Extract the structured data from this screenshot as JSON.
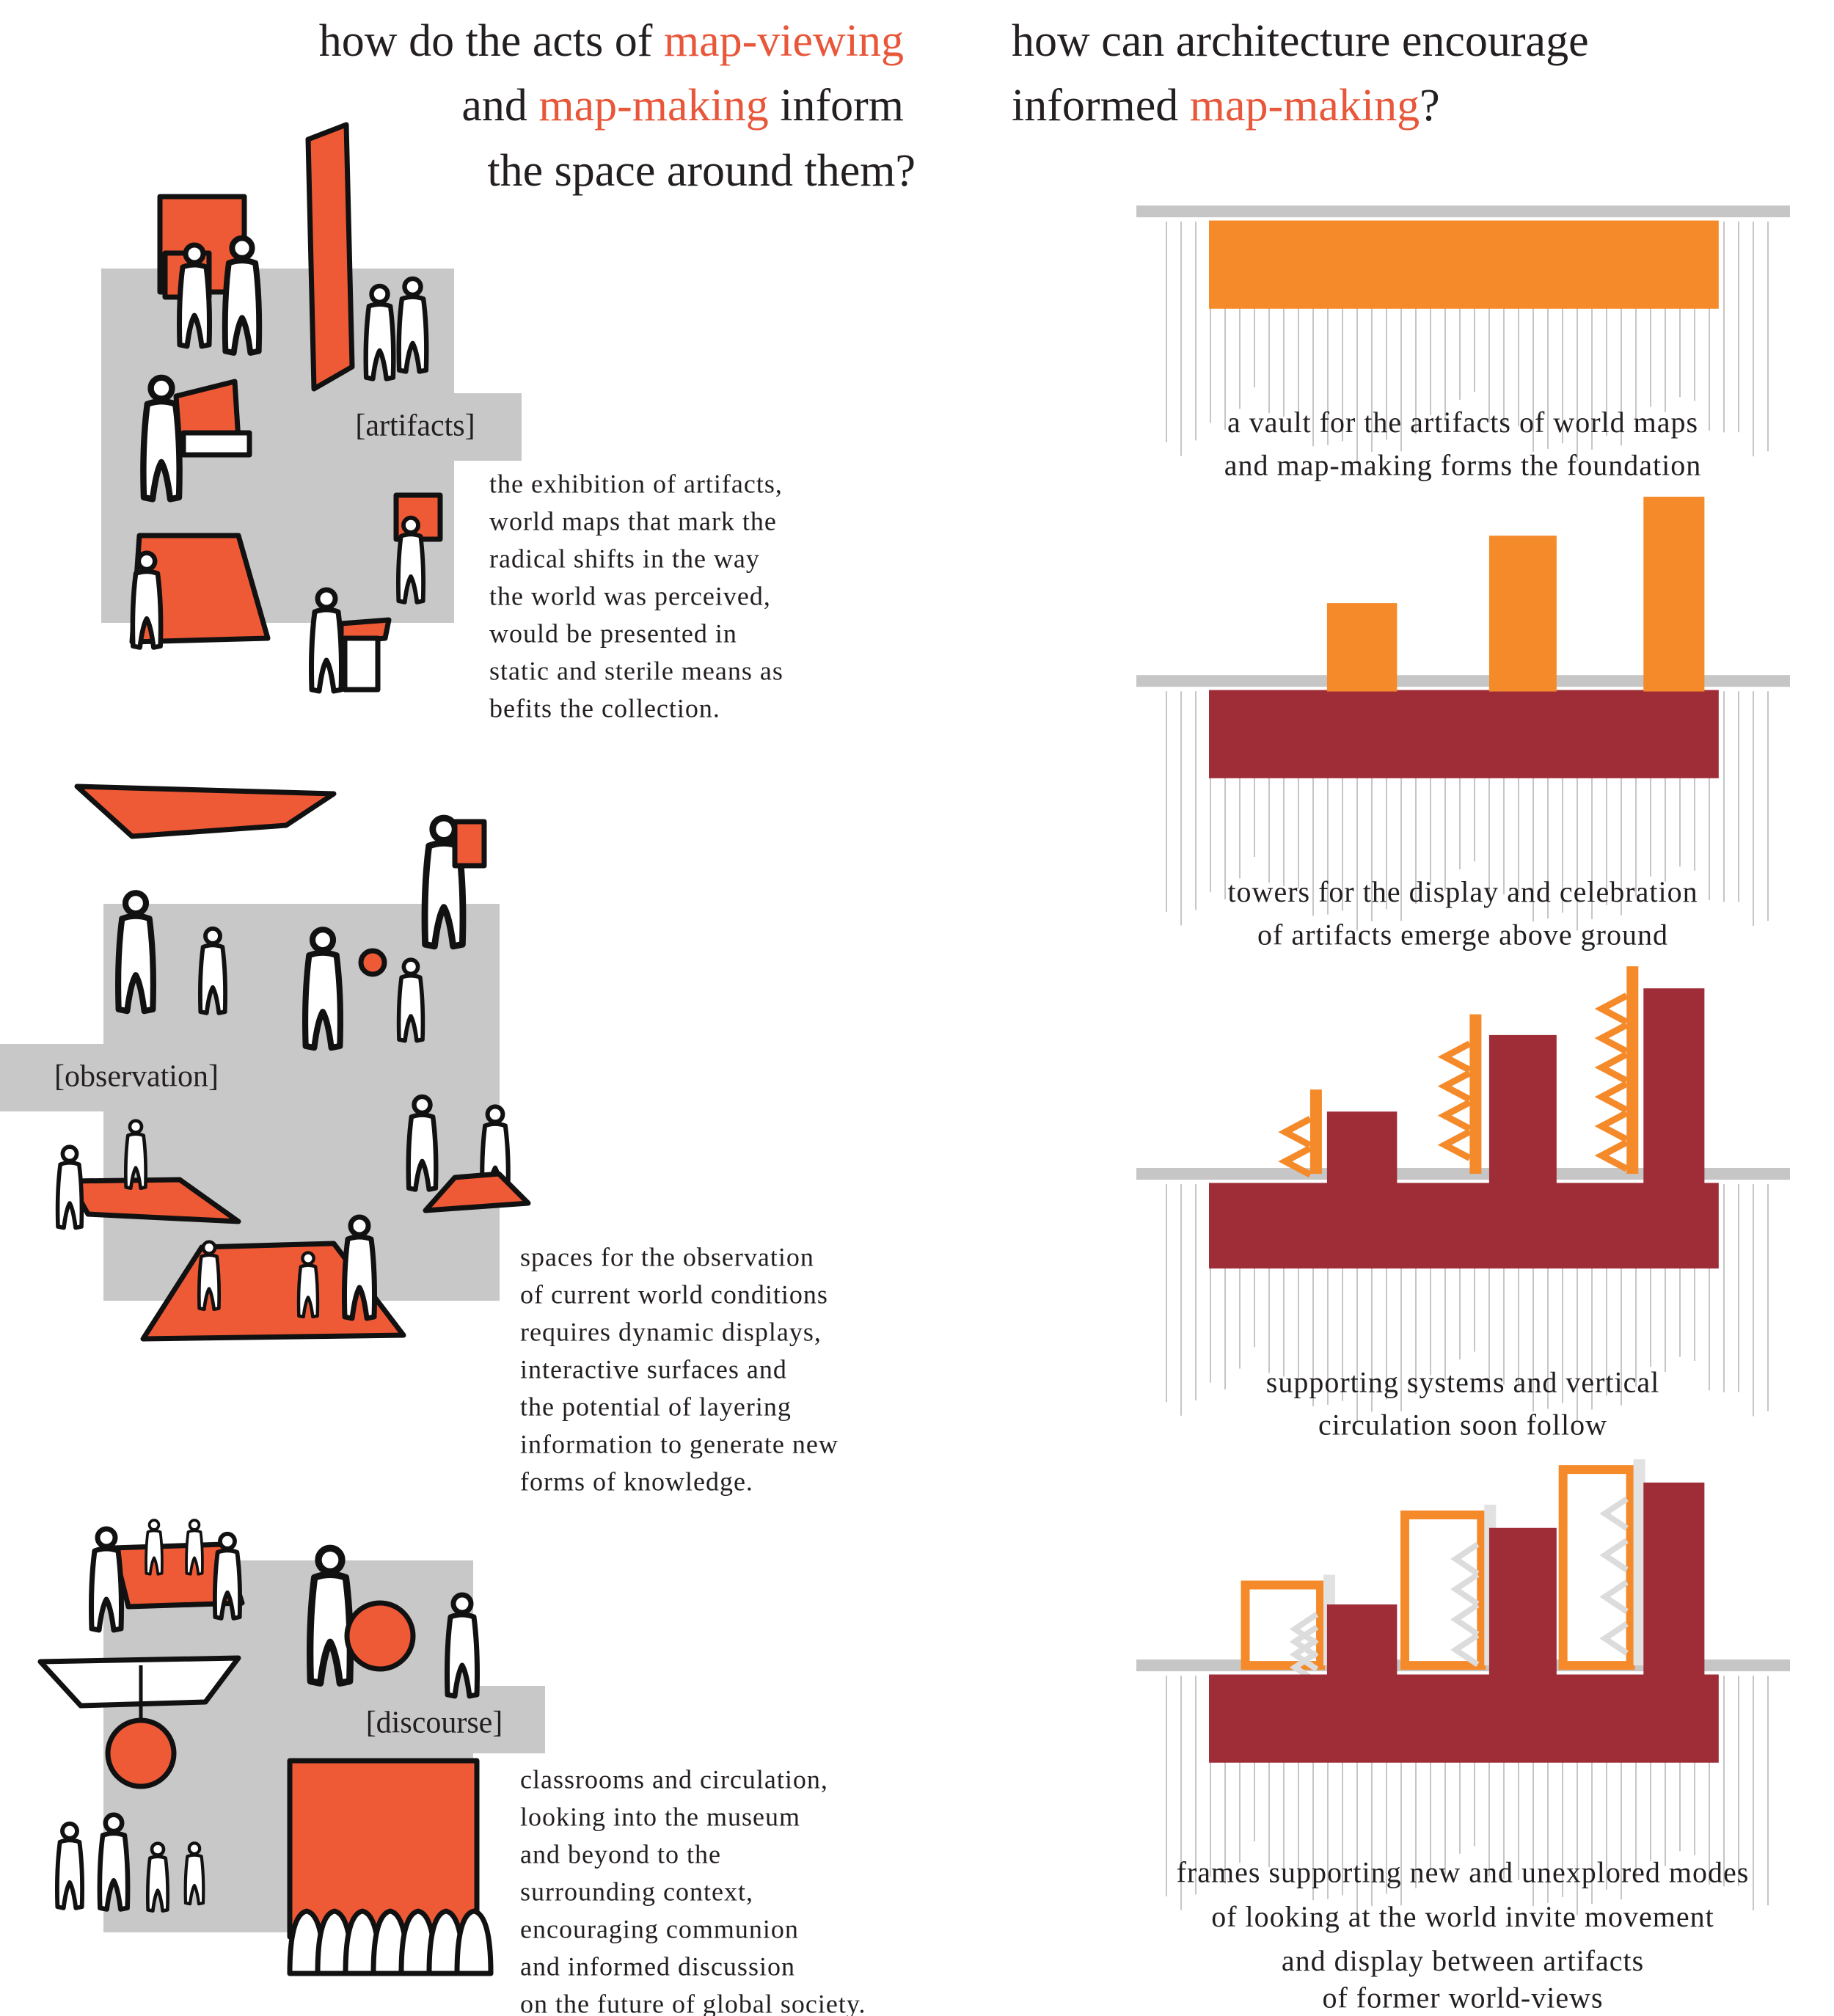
{
  "left_heading": [
    "how do the acts of",
    "map-viewing",
    "and",
    "map-making",
    "inform",
    "the space around them?"
  ],
  "right_heading": [
    "how can architecture encourage",
    "informed",
    "map-making",
    "?"
  ],
  "sections": [
    {
      "label": "[artifacts]",
      "text": [
        "the exhibition of artifacts,",
        "world maps that mark the",
        "radical shifts in the way",
        "the world was perceived,",
        "would be presented in",
        "static and sterile means as",
        "befits the collection."
      ]
    },
    {
      "label": "[observation]",
      "text": [
        "spaces for the observation",
        "of current world conditions",
        "requires dynamic displays,",
        "interactive surfaces and",
        "the potential of layering",
        "information to generate new",
        "forms of knowledge."
      ]
    },
    {
      "label": "[discourse]",
      "text": [
        "classrooms and circulation,",
        "looking into the museum",
        "and beyond to the",
        "surrounding context,",
        "encouraging communion",
        "and informed discussion",
        "on the future of global society."
      ]
    }
  ],
  "stages": [
    {
      "caption": [
        "a vault for the artifacts of world maps",
        "and map-making forms the foundation"
      ]
    },
    {
      "caption": [
        "towers for the display and celebration",
        "of artifacts emerge above ground"
      ]
    },
    {
      "caption": [
        "supporting systems and vertical",
        "circulation soon follow"
      ]
    },
    {
      "caption": [
        "frames supporting new and unexplored modes",
        "of looking at the world invite movement",
        "and display between artifacts",
        "of former world-views"
      ]
    }
  ]
}
